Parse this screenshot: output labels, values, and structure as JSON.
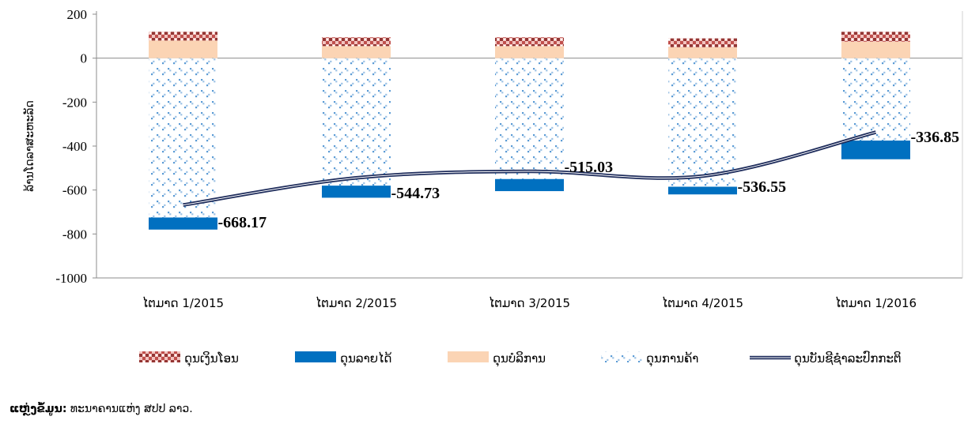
{
  "chart_data": {
    "type": "bar",
    "stacked": true,
    "categories": [
      "ໄຕມາດ 1/2015",
      "ໄຕມາດ 2/2015",
      "ໄຕມາດ 3/2015",
      "ໄຕມາດ 4/2015",
      "ໄຕມາດ 1/2016"
    ],
    "ylabel": "ລ້ານໂດລາສະຫະລັດ",
    "ylim": [
      -1000,
      200
    ],
    "yticks": [
      200,
      0,
      -200,
      -400,
      -600,
      -800,
      -1000
    ],
    "grid": false,
    "legend_position": "bottom",
    "series": [
      {
        "name": "ດຸນເງິນໂອນ",
        "kind": "bar",
        "color": "#c0504d",
        "values": [
          40,
          40,
          40,
          40,
          45
        ]
      },
      {
        "name": "ດຸນລາຍໄດ້",
        "kind": "bar",
        "color": "#0070c0",
        "values": [
          -55,
          -55,
          -55,
          -35,
          -85
        ]
      },
      {
        "name": "ດຸນບໍລິການ",
        "kind": "bar",
        "color": "#fbd4b4",
        "values": [
          80,
          55,
          55,
          50,
          75
        ]
      },
      {
        "name": "ດຸນການຄ້າ",
        "kind": "bar",
        "color": "#9dc3e6",
        "values": [
          -725,
          -580,
          -550,
          -585,
          -375
        ]
      },
      {
        "name": "ດຸນບັນຊີຊໍາລະປົກກະຕິ",
        "kind": "line",
        "color": "#1f2d5c",
        "values": [
          -668.17,
          -544.73,
          -515.03,
          -536.55,
          -336.85
        ]
      }
    ],
    "data_labels": [
      "-668.17",
      "-544.73",
      "-515.03",
      "-536.55",
      "-336.85"
    ]
  },
  "source": {
    "label": "ແຫຼ່ງຂໍ້ມູນ:",
    "text": " ທະນາຄານແຫ່ງ ສປປ ລາວ."
  }
}
